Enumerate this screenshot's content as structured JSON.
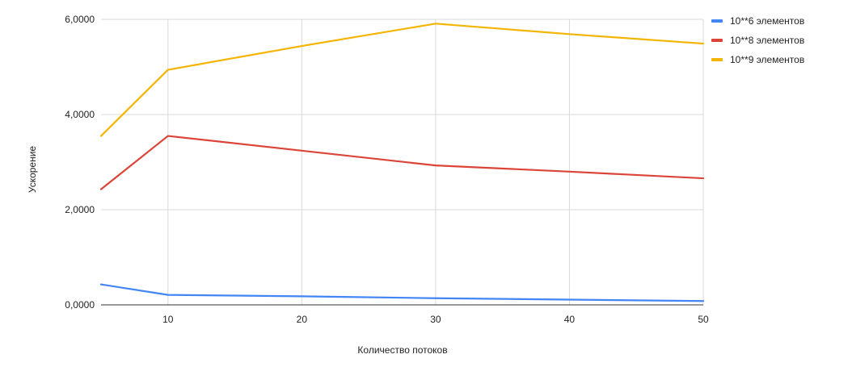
{
  "chart_data": {
    "type": "line",
    "title": "",
    "xlabel": "Количество потоков",
    "ylabel": "Ускорение",
    "x": [
      5,
      10,
      20,
      30,
      40,
      50
    ],
    "xlim": [
      5,
      50
    ],
    "ylim": [
      0,
      6
    ],
    "xticks": [
      10,
      20,
      30,
      40,
      50
    ],
    "xtick_labels": [
      "10",
      "20",
      "30",
      "40",
      "50"
    ],
    "yticks": [
      0,
      2,
      4,
      6
    ],
    "ytick_labels": [
      "0,0000",
      "2,0000",
      "4,0000",
      "6,0000"
    ],
    "grid": true,
    "legend_position": "right",
    "series": [
      {
        "name": "10**6 элементов",
        "color": "#4285F4",
        "values": [
          0.43,
          0.21,
          0.18,
          0.14,
          0.11,
          0.08
        ]
      },
      {
        "name": "10**8 элементов",
        "color": "#DB4437",
        "values": [
          2.43,
          3.55,
          3.24,
          2.93,
          2.8,
          2.66
        ]
      },
      {
        "name": "10**9 элементов",
        "color": "#F4B400",
        "values": [
          3.55,
          4.94,
          5.44,
          5.91,
          5.69,
          5.49
        ]
      }
    ]
  }
}
